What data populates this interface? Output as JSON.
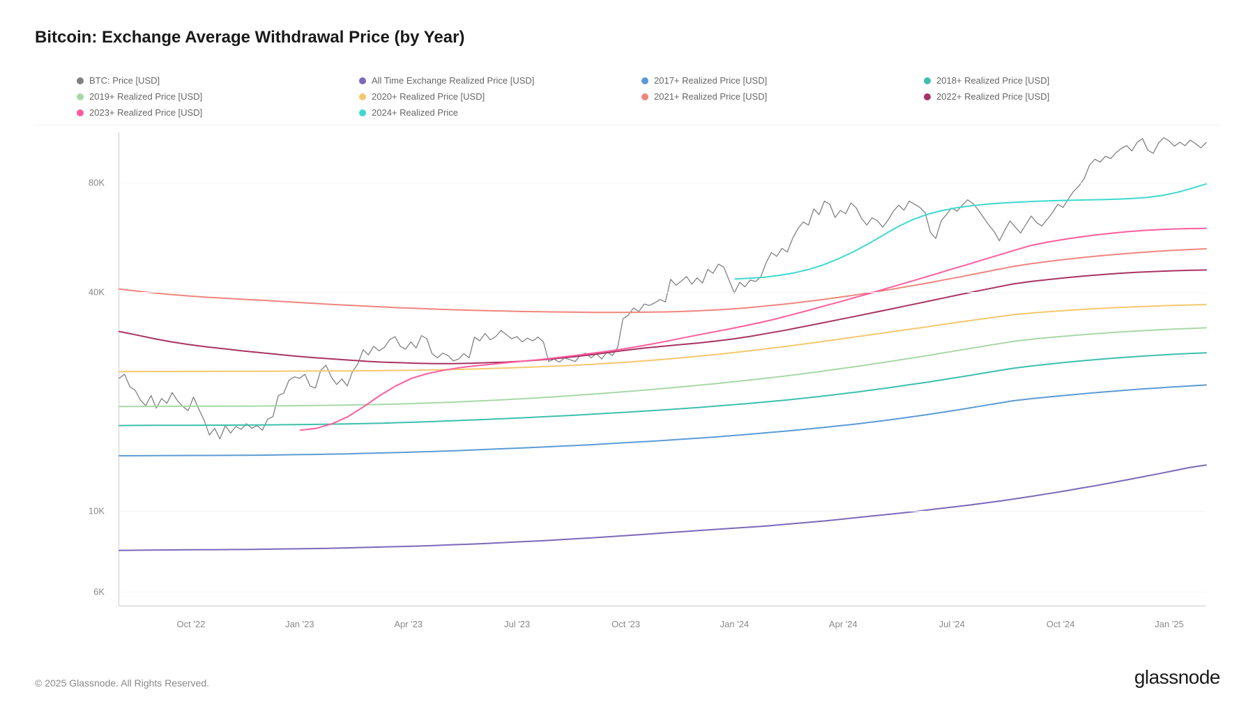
{
  "title": "Bitcoin: Exchange Average Withdrawal Price (by Year)",
  "copyright": "© 2025 Glassnode. All Rights Reserved.",
  "brand": "glassnode",
  "chart": {
    "type": "line",
    "yscale": "log",
    "background_color": "#ffffff",
    "grid_color": "#f5f5f5",
    "axis_color": "#cccccc",
    "label_color": "#888888",
    "label_fontsize": 13,
    "title_fontsize": 24,
    "line_width": 2,
    "btc_line_width": 1.3,
    "y_ticks": [
      {
        "value": 6000,
        "label": "6K"
      },
      {
        "value": 10000,
        "label": "10K"
      },
      {
        "value": 40000,
        "label": "40K"
      },
      {
        "value": 80000,
        "label": "80K"
      }
    ],
    "y_min": 5500,
    "y_max": 110000,
    "x_ticks": [
      "Oct '22",
      "Jan '23",
      "Apr '23",
      "Jul '23",
      "Oct '23",
      "Jan '24",
      "Apr '24",
      "Jul '24",
      "Oct '24",
      "Jan '25"
    ],
    "x_range_months": 31,
    "x_start_label": "Aug '22",
    "legend": [
      {
        "label": "BTC: Price [USD]",
        "color": "#808080"
      },
      {
        "label": "All Time Exchange Realized Price [USD]",
        "color": "#7b68b8"
      },
      {
        "label": "2017+ Realized Price [USD]",
        "color": "#5b9bd5"
      },
      {
        "label": "2018+ Realized Price [USD]",
        "color": "#3cbfae"
      },
      {
        "label": "2019+ Realized Price [USD]",
        "color": "#a8d8a8"
      },
      {
        "label": "2020+ Realized Price [USD]",
        "color": "#f5c86e"
      },
      {
        "label": "2021+ Realized Price [USD]",
        "color": "#f0857d"
      },
      {
        "label": "2022+ Realized Price [USD]",
        "color": "#a83264"
      },
      {
        "label": "2023+ Realized Price [USD]",
        "color": "#ff5c9d"
      },
      {
        "label": "2024+ Realized Price",
        "color": "#3dd9d0"
      }
    ],
    "series": {
      "btc_price": {
        "color": "#808080",
        "values": [
          23200,
          23800,
          22000,
          21500,
          20200,
          19500,
          20800,
          19200,
          20400,
          19800,
          21200,
          20100,
          19400,
          18900,
          20600,
          19100,
          17800,
          16200,
          16900,
          15800,
          17200,
          16400,
          17100,
          16800,
          17400,
          16900,
          17200,
          16700,
          17900,
          18200,
          20800,
          21100,
          22900,
          23400,
          23200,
          23800,
          22100,
          21800,
          24400,
          25200,
          23400,
          22300,
          23100,
          22100,
          24200,
          25400,
          27800,
          26900,
          28400,
          27600,
          28200,
          29600,
          30200,
          28400,
          27900,
          29200,
          28100,
          30400,
          29800,
          27100,
          26400,
          27200,
          26800,
          25900,
          26200,
          27100,
          26400,
          30100,
          29400,
          30800,
          29600,
          30200,
          31400,
          30600,
          29800,
          30200,
          29200,
          29900,
          29400,
          30100,
          29200,
          25800,
          26200,
          25700,
          26400,
          26100,
          25800,
          26900,
          27200,
          26400,
          27100,
          26200,
          27400,
          26800,
          28200,
          33800,
          34600,
          36200,
          35400,
          37100,
          36800,
          37400,
          38200,
          37600,
          43400,
          41800,
          42900,
          44200,
          42100,
          43800,
          42400,
          46200,
          45100,
          47800,
          46900,
          43200,
          39800,
          42600,
          41400,
          43200,
          42800,
          44100,
          48200,
          51400,
          50200,
          52800,
          51600,
          56200,
          59800,
          62400,
          61200,
          67800,
          65400,
          71200,
          69800,
          64200,
          67100,
          65800,
          70400,
          68200,
          63800,
          61200,
          64100,
          62800,
          60400,
          63200,
          66800,
          69400,
          67200,
          71200,
          69800,
          68400,
          66200,
          58400,
          56200,
          62800,
          65400,
          68200,
          66800,
          69400,
          71800,
          70200,
          67400,
          64200,
          61200,
          58800,
          55400,
          59200,
          62800,
          60400,
          58200,
          61400,
          64800,
          62200,
          60800,
          63400,
          66200,
          69800,
          68400,
          72200,
          75800,
          78400,
          82200,
          89400,
          92800,
          91200,
          94600,
          93200,
          96800,
          99400,
          101200,
          97800,
          103400,
          105800,
          98200,
          96400,
          102800,
          106400,
          104200,
          100800,
          103400,
          101200,
          104800,
          102400,
          99800,
          103200
        ]
      },
      "all_time": {
        "color": "#7b68b8",
        "values": [
          7800,
          7810,
          7820,
          7825,
          7830,
          7835,
          7840,
          7845,
          7850,
          7860,
          7870,
          7880,
          7890,
          7900,
          7920,
          7940,
          7960,
          7980,
          8000,
          8020,
          8050,
          8080,
          8110,
          8140,
          8180,
          8220,
          8260,
          8300,
          8350,
          8400,
          8450,
          8500,
          8560,
          8620,
          8680,
          8740,
          8800,
          8860,
          8920,
          8980,
          9040,
          9100,
          9180,
          9260,
          9340,
          9420,
          9520,
          9620,
          9720,
          9820,
          9920,
          10040,
          10160,
          10280,
          10400,
          10540,
          10680,
          10840,
          11000,
          11180,
          11360,
          11560,
          11760,
          11980,
          12200,
          12440,
          12680,
          12940,
          13200,
          13400
        ]
      },
      "y2017": {
        "color": "#5b9bd5",
        "values": [
          14200,
          14210,
          14220,
          14225,
          14230,
          14235,
          14240,
          14250,
          14260,
          14280,
          14300,
          14320,
          14350,
          14380,
          14420,
          14460,
          14500,
          14550,
          14600,
          14650,
          14720,
          14790,
          14860,
          14930,
          15000,
          15080,
          15160,
          15240,
          15340,
          15440,
          15540,
          15640,
          15760,
          15880,
          16000,
          16140,
          16280,
          16440,
          16600,
          16780,
          16960,
          17160,
          17360,
          17600,
          17840,
          18120,
          18400,
          18720,
          19040,
          19400,
          19760,
          20120,
          20380,
          20610,
          20830,
          21040,
          21240,
          21430,
          21610,
          21780,
          21940,
          22090,
          22230
        ]
      },
      "y2018": {
        "color": "#3cbfae",
        "values": [
          17200,
          17210,
          17220,
          17225,
          17230,
          17235,
          17240,
          17250,
          17260,
          17280,
          17300,
          17320,
          17350,
          17380,
          17420,
          17460,
          17520,
          17580,
          17650,
          17720,
          17800,
          17880,
          17970,
          18060,
          18160,
          18260,
          18370,
          18480,
          18600,
          18720,
          18850,
          18980,
          19130,
          19280,
          19440,
          19620,
          19800,
          20000,
          20200,
          20440,
          20680,
          20960,
          21240,
          21560,
          21880,
          22240,
          22600,
          23000,
          23400,
          23840,
          24280,
          24720,
          25060,
          25370,
          25660,
          25930,
          26180,
          26410,
          26620,
          26810,
          26980,
          27130,
          27260
        ]
      },
      "y2019": {
        "color": "#a8d8a8",
        "values": [
          19400,
          19410,
          19420,
          19425,
          19430,
          19435,
          19440,
          19450,
          19460,
          19480,
          19500,
          19520,
          19550,
          19580,
          19620,
          19660,
          19720,
          19780,
          19860,
          19940,
          20040,
          20140,
          20260,
          20380,
          20520,
          20660,
          20820,
          20980,
          21160,
          21340,
          21540,
          21740,
          21960,
          22180,
          22420,
          22680,
          22940,
          23240,
          23540,
          23880,
          24220,
          24600,
          24980,
          25400,
          25820,
          26280,
          26740,
          27240,
          27740,
          28260,
          28780,
          29300,
          29680,
          30010,
          30310,
          30590,
          30840,
          31070,
          31280,
          31470,
          31640,
          31790,
          31920
        ]
      },
      "y2020": {
        "color": "#f5c86e",
        "values": [
          24200,
          24210,
          24220,
          24225,
          24230,
          24235,
          24240,
          24245,
          24250,
          24260,
          24270,
          24280,
          24295,
          24310,
          24330,
          24350,
          24380,
          24420,
          24470,
          24520,
          24590,
          24660,
          24750,
          24840,
          24950,
          25060,
          25200,
          25340,
          25520,
          25700,
          25920,
          26140,
          26400,
          26660,
          26960,
          27280,
          27620,
          28000,
          28380,
          28800,
          29220,
          29680,
          30140,
          30620,
          31100,
          31600,
          32100,
          32620,
          33140,
          33660,
          34180,
          34700,
          35060,
          35360,
          35630,
          35880,
          36100,
          36300,
          36480,
          36640,
          36780,
          36900,
          37000
        ]
      },
      "y2021": {
        "color": "#f0857d",
        "values": [
          40800,
          40300,
          39800,
          39400,
          39050,
          38750,
          38500,
          38250,
          38050,
          37800,
          37550,
          37300,
          37050,
          36850,
          36650,
          36450,
          36250,
          36100,
          35950,
          35800,
          35700,
          35600,
          35500,
          35400,
          35350,
          35300,
          35250,
          35200,
          35200,
          35200,
          35250,
          35300,
          35400,
          35550,
          35750,
          36000,
          36300,
          36700,
          37100,
          37600,
          38100,
          38700,
          39300,
          40000,
          40700,
          41500,
          42300,
          43200,
          44100,
          45100,
          46100,
          47100,
          47900,
          48600,
          49250,
          49850,
          50400,
          50900,
          51350,
          51750,
          52100,
          52400,
          52650
        ]
      },
      "y2022": {
        "color": "#a83264",
        "values": [
          31200,
          30500,
          29800,
          29200,
          28700,
          28300,
          27950,
          27600,
          27300,
          27000,
          26700,
          26450,
          26250,
          26050,
          25850,
          25700,
          25600,
          25500,
          25450,
          25450,
          25500,
          25600,
          25700,
          25850,
          26050,
          26300,
          26600,
          26950,
          27350,
          27750,
          28100,
          28400,
          28700,
          29000,
          29350,
          29750,
          30250,
          30850,
          31450,
          32150,
          32850,
          33600,
          34350,
          35150,
          35950,
          36800,
          37650,
          38550,
          39450,
          40350,
          41250,
          42150,
          42800,
          43350,
          43850,
          44300,
          44700,
          45050,
          45350,
          45600,
          45800,
          45950,
          46050
        ]
      },
      "y2023": {
        "color": "#ff5c9d",
        "start_index": 9,
        "values": [
          16700,
          16900,
          17400,
          18200,
          19400,
          20800,
          22100,
          23200,
          23900,
          24400,
          24800,
          25100,
          25350,
          25600,
          25850,
          26100,
          26400,
          26700,
          27050,
          27400,
          27800,
          28250,
          28750,
          29300,
          29900,
          30500,
          31100,
          31700,
          32350,
          33050,
          33850,
          34750,
          35700,
          36700,
          37700,
          38800,
          39900,
          41100,
          42300,
          43600,
          44900,
          46300,
          47700,
          49200,
          50700,
          52250,
          53800,
          54900,
          55850,
          56700,
          57450,
          58100,
          58650,
          59100,
          59450,
          59700,
          59850,
          59950
        ]
      },
      "y2024": {
        "color": "#3dd9d0",
        "start_index": 34,
        "values": [
          43500,
          43700,
          44000,
          44500,
          45200,
          46200,
          47600,
          49400,
          51600,
          54200,
          57200,
          60400,
          63200,
          65400,
          67000,
          68200,
          69100,
          69800,
          70300,
          70700,
          71000,
          71250,
          71450,
          71600,
          71750,
          71900,
          72100,
          72400,
          72900,
          73800,
          75200,
          77200,
          79400
        ]
      }
    }
  }
}
